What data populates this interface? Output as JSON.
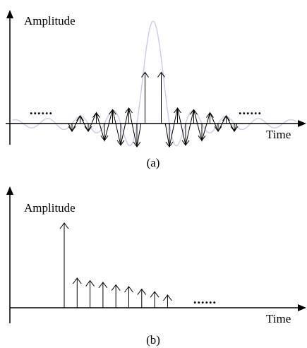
{
  "panel_a": {
    "y_label": "Amplitude",
    "x_label": "Time",
    "caption": "(a)",
    "ellipsis": "......",
    "envelope_color": "#c9cce8",
    "impulses": [
      {
        "offset": -10,
        "value": -0.5
      },
      {
        "offset": -9,
        "value": 0.5
      },
      {
        "offset": -8,
        "value": -0.5
      },
      {
        "offset": -7,
        "value": 0.7
      },
      {
        "offset": -6,
        "value": -1.1
      },
      {
        "offset": -5,
        "value": 0.9
      },
      {
        "offset": -4,
        "value": -1.4
      },
      {
        "offset": -3,
        "value": 1.0
      },
      {
        "offset": -2,
        "value": -1.5
      },
      {
        "offset": -1,
        "value": 3.3
      },
      {
        "offset": 1,
        "value": 3.3
      },
      {
        "offset": 2,
        "value": -1.5
      },
      {
        "offset": 3,
        "value": 1.0
      },
      {
        "offset": 4,
        "value": -1.4
      },
      {
        "offset": 5,
        "value": 0.9
      },
      {
        "offset": 6,
        "value": -1.1
      },
      {
        "offset": 7,
        "value": 0.7
      },
      {
        "offset": 8,
        "value": -0.5
      },
      {
        "offset": 9,
        "value": 0.5
      },
      {
        "offset": 10,
        "value": -0.5
      }
    ]
  },
  "panel_b": {
    "y_label": "Amplitude",
    "x_label": "Time",
    "caption": "(b)",
    "ellipsis": "......",
    "impulses": [
      {
        "index": 0,
        "value": 1.0
      },
      {
        "index": 1,
        "value": 0.35
      },
      {
        "index": 2,
        "value": 0.32
      },
      {
        "index": 3,
        "value": 0.3
      },
      {
        "index": 4,
        "value": 0.27
      },
      {
        "index": 5,
        "value": 0.25
      },
      {
        "index": 6,
        "value": 0.22
      },
      {
        "index": 7,
        "value": 0.19
      },
      {
        "index": 8,
        "value": 0.15
      }
    ]
  }
}
